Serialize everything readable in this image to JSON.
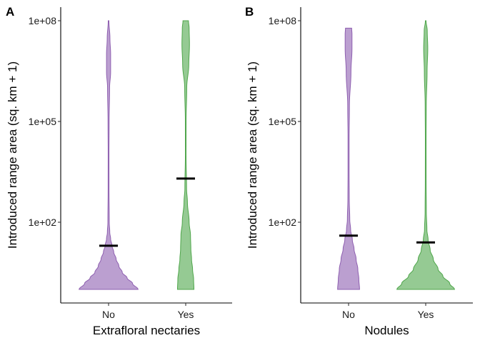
{
  "colors": {
    "no": "#8e5fb0",
    "yes": "#4fa64b"
  },
  "chart_data": [
    {
      "type": "violin",
      "panel": "A",
      "xlabel": "Extrafloral nectaries",
      "ylabel": "Introduced range area (sq. km + 1)",
      "y_scale": "log10",
      "ylim": [
        0.3,
        500000000
      ],
      "y_ticks": [
        {
          "value": 100,
          "label": "1e+02"
        },
        {
          "value": 100000,
          "label": "1e+05"
        },
        {
          "value": 100000000,
          "label": "1e+08"
        }
      ],
      "categories": [
        "No",
        "Yes"
      ],
      "violins": [
        {
          "category": "No",
          "min": 1,
          "max": 100000000,
          "median": 20,
          "profile": [
            [
              1,
              0.86
            ],
            [
              1.5,
              0.7
            ],
            [
              2.2,
              0.54
            ],
            [
              3.2,
              0.4
            ],
            [
              5,
              0.3
            ],
            [
              8,
              0.22
            ],
            [
              13,
              0.15
            ],
            [
              20,
              0.1
            ],
            [
              32,
              0.06
            ],
            [
              50,
              0.035
            ],
            [
              100,
              0.02
            ],
            [
              1000,
              0.013
            ],
            [
              10000,
              0.012
            ],
            [
              100000,
              0.016
            ],
            [
              1000000,
              0.03
            ],
            [
              3000000,
              0.06
            ],
            [
              10000000,
              0.06
            ],
            [
              30000000,
              0.04
            ],
            [
              100000000,
              0.01
            ]
          ]
        },
        {
          "category": "Yes",
          "min": 1,
          "max": 100000000,
          "median": 2000,
          "profile": [
            [
              1,
              0.24
            ],
            [
              2,
              0.23
            ],
            [
              4,
              0.2
            ],
            [
              8,
              0.17
            ],
            [
              16,
              0.15
            ],
            [
              40,
              0.14
            ],
            [
              100,
              0.1
            ],
            [
              400,
              0.05
            ],
            [
              1000,
              0.025
            ],
            [
              10000,
              0.01
            ],
            [
              100000,
              0.011
            ],
            [
              1000000,
              0.03
            ],
            [
              5000000,
              0.09
            ],
            [
              20000000,
              0.11
            ],
            [
              60000000,
              0.1
            ],
            [
              100000000,
              0.08
            ]
          ]
        }
      ]
    },
    {
      "type": "violin",
      "panel": "B",
      "xlabel": "Nodules",
      "ylabel": "Introduced range area (sq. km + 1)",
      "y_scale": "log10",
      "ylim": [
        0.3,
        500000000
      ],
      "y_ticks": [
        {
          "value": 100,
          "label": "1e+02"
        },
        {
          "value": 100000,
          "label": "1e+05"
        },
        {
          "value": 100000000,
          "label": "1e+08"
        }
      ],
      "categories": [
        "No",
        "Yes"
      ],
      "violins": [
        {
          "category": "No",
          "min": 1,
          "max": 60000000,
          "median": 40,
          "profile": [
            [
              1,
              0.32
            ],
            [
              2,
              0.3
            ],
            [
              4,
              0.27
            ],
            [
              8,
              0.22
            ],
            [
              16,
              0.16
            ],
            [
              30,
              0.11
            ],
            [
              60,
              0.06
            ],
            [
              120,
              0.035
            ],
            [
              500,
              0.02
            ],
            [
              3000,
              0.016
            ],
            [
              30000,
              0.016
            ],
            [
              300000,
              0.025
            ],
            [
              3000000,
              0.07
            ],
            [
              15000000,
              0.1
            ],
            [
              40000000,
              0.1
            ],
            [
              60000000,
              0.09
            ]
          ]
        },
        {
          "category": "Yes",
          "min": 1,
          "max": 100000000,
          "median": 25,
          "profile": [
            [
              1,
              0.84
            ],
            [
              1.5,
              0.7
            ],
            [
              2.5,
              0.5
            ],
            [
              4,
              0.36
            ],
            [
              8,
              0.22
            ],
            [
              15,
              0.13
            ],
            [
              30,
              0.07
            ],
            [
              60,
              0.035
            ],
            [
              200,
              0.018
            ],
            [
              2000,
              0.012
            ],
            [
              30000,
              0.011
            ],
            [
              300000,
              0.016
            ],
            [
              3000000,
              0.04
            ],
            [
              15000000,
              0.06
            ],
            [
              50000000,
              0.045
            ],
            [
              100000000,
              0.01
            ]
          ]
        }
      ]
    }
  ]
}
